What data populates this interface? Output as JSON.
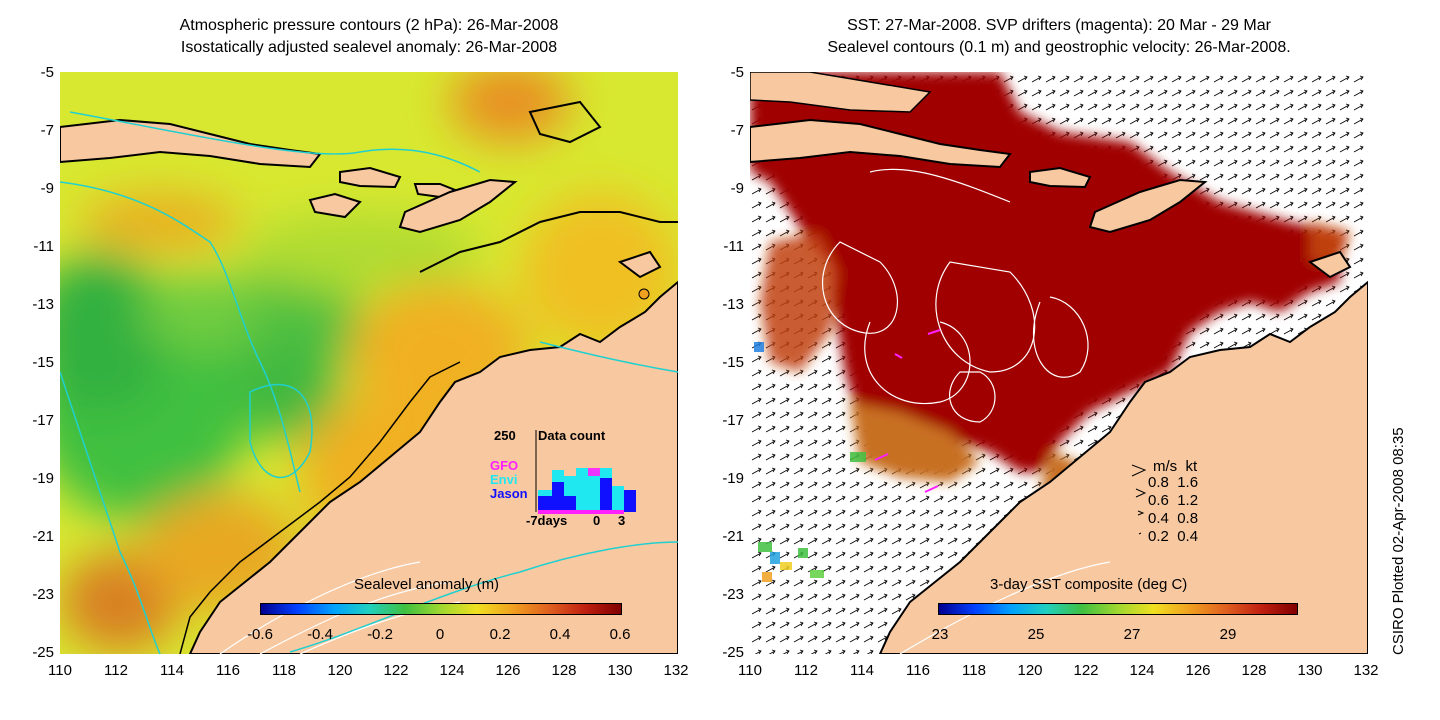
{
  "left_panel": {
    "title_line1": "Atmospheric pressure contours (2 hPa): 26-Mar-2008",
    "title_line2": "Isostatically adjusted sealevel anomaly: 26-Mar-2008",
    "colorbar_title": "Sealevel anomaly (m)",
    "colorbar_ticks": [
      "-0.6",
      "-0.4",
      "-0.2",
      "0",
      "0.2",
      "0.4",
      "0.6"
    ],
    "data_count": {
      "title": "Data count",
      "ymax_label": "250",
      "x_labels": [
        "-7days",
        "0",
        "3"
      ],
      "series_labels": [
        "GFO",
        "Envi",
        "Jason"
      ],
      "series_colors": [
        "#ff20ff",
        "#20e8f0",
        "#1010ff"
      ]
    }
  },
  "right_panel": {
    "title_line1": "SST: 27-Mar-2008. SVP drifters (magenta): 20 Mar - 29 Mar",
    "title_line2": "Sealevel contours (0.1 m) and geostrophic velocity: 26-Mar-2008.",
    "colorbar_title": "3-day SST composite (deg C)",
    "colorbar_ticks": [
      "23",
      "25",
      "27",
      "29"
    ],
    "velocity_legend": {
      "header_ms": "m/s",
      "header_kt": "kt",
      "rows": [
        {
          "ms": "0.8",
          "kt": "1.6"
        },
        {
          "ms": "0.6",
          "kt": "1.2"
        },
        {
          "ms": "0.4",
          "kt": "0.8"
        },
        {
          "ms": "0.2",
          "kt": "0.4"
        }
      ]
    }
  },
  "axes": {
    "y_ticks": [
      "-5",
      "-7",
      "-9",
      "-11",
      "-13",
      "-15",
      "-17",
      "-19",
      "-21",
      "-23",
      "-25"
    ],
    "x_ticks": [
      "110",
      "112",
      "114",
      "116",
      "118",
      "120",
      "122",
      "124",
      "126",
      "128",
      "130",
      "132"
    ]
  },
  "credit": "CSIRO Plotted 02-Apr-2008 08:35",
  "colors": {
    "land": "#f8c8a0",
    "sst_hot": "#a00000",
    "sla_green": "#40c040",
    "sla_yellow": "#f0e020",
    "sla_orange": "#f0a020",
    "contour_cyan": "#20d0d0"
  }
}
